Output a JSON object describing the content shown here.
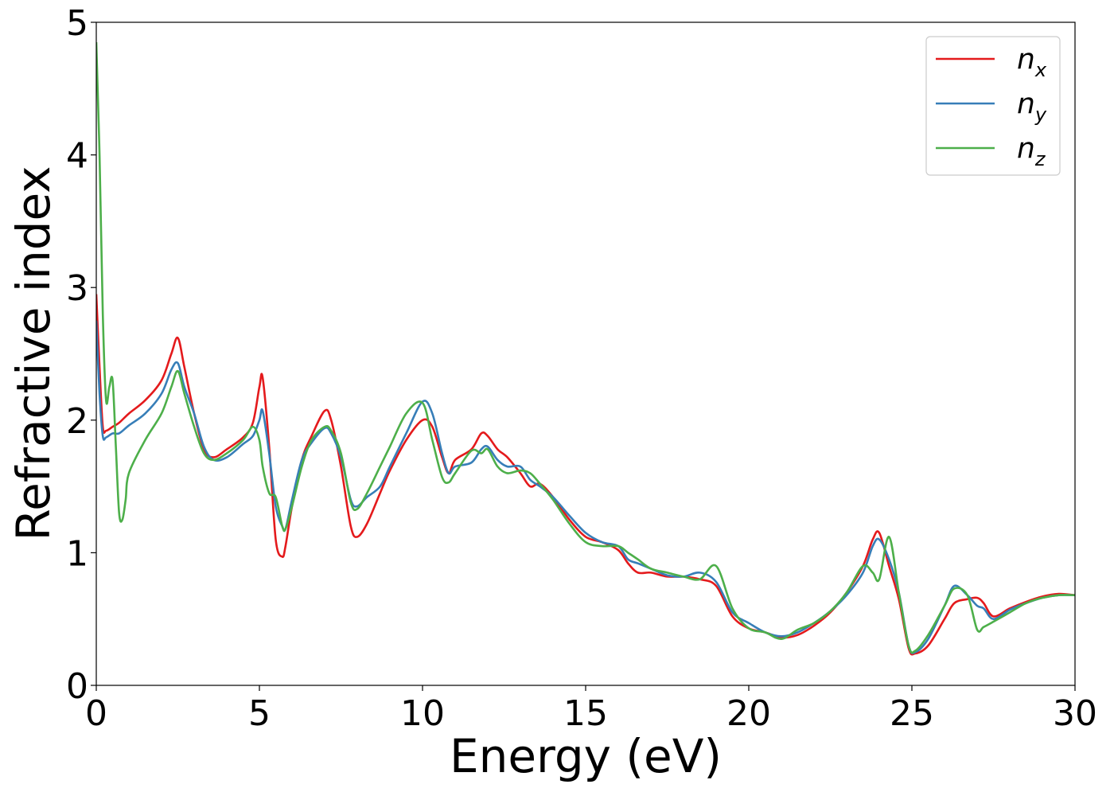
{
  "chart_data": {
    "type": "line",
    "title": "",
    "xlabel": "Energy (eV)",
    "ylabel": "Refractive index",
    "xlim": [
      0,
      30
    ],
    "ylim": [
      0,
      5
    ],
    "xticks": [
      "0",
      "5",
      "10",
      "15",
      "20",
      "25",
      "30"
    ],
    "yticks": [
      "0",
      "1",
      "2",
      "3",
      "4",
      "5"
    ],
    "grid": false,
    "legend_position": "top-right",
    "series": [
      {
        "name": "n",
        "subscript": "x",
        "color": "#e41a1c",
        "x": [
          0,
          0.1,
          0.2,
          0.3,
          0.5,
          0.7,
          1.0,
          1.5,
          2.0,
          2.3,
          2.5,
          2.7,
          3.0,
          3.3,
          3.6,
          4.0,
          4.5,
          4.8,
          5.0,
          5.1,
          5.3,
          5.5,
          5.7,
          5.8,
          6.0,
          6.3,
          6.6,
          7.0,
          7.2,
          7.5,
          7.8,
          8.0,
          8.3,
          8.7,
          9.0,
          9.5,
          10.0,
          10.3,
          10.6,
          10.8,
          11.0,
          11.5,
          11.8,
          12.0,
          12.3,
          12.6,
          13.0,
          13.3,
          13.6,
          14.0,
          14.5,
          15.0,
          15.5,
          16.0,
          16.3,
          16.6,
          17.0,
          17.5,
          18.0,
          18.5,
          19.0,
          19.5,
          20.0,
          20.5,
          21.0,
          21.5,
          22.0,
          22.5,
          23.0,
          23.5,
          23.8,
          24.0,
          24.3,
          24.6,
          24.9,
          25.1,
          25.5,
          26.0,
          26.3,
          26.7,
          27.0,
          27.2,
          27.5,
          28.0,
          28.5,
          29.0,
          29.5,
          30.0
        ],
        "y": [
          2.95,
          2.4,
          1.95,
          1.92,
          1.95,
          1.98,
          2.05,
          2.15,
          2.3,
          2.5,
          2.62,
          2.4,
          2.05,
          1.78,
          1.72,
          1.78,
          1.87,
          1.98,
          2.25,
          2.32,
          1.8,
          1.1,
          0.97,
          1.05,
          1.35,
          1.7,
          1.88,
          2.07,
          2.0,
          1.65,
          1.2,
          1.12,
          1.22,
          1.45,
          1.62,
          1.85,
          2.0,
          1.95,
          1.72,
          1.6,
          1.7,
          1.78,
          1.9,
          1.88,
          1.78,
          1.72,
          1.6,
          1.5,
          1.52,
          1.42,
          1.25,
          1.12,
          1.08,
          1.02,
          0.92,
          0.85,
          0.85,
          0.82,
          0.82,
          0.8,
          0.75,
          0.52,
          0.43,
          0.4,
          0.36,
          0.38,
          0.45,
          0.55,
          0.7,
          0.9,
          1.1,
          1.15,
          0.9,
          0.65,
          0.28,
          0.24,
          0.3,
          0.5,
          0.62,
          0.65,
          0.66,
          0.62,
          0.52,
          0.58,
          0.63,
          0.67,
          0.69,
          0.68
        ]
      },
      {
        "name": "n",
        "subscript": "y",
        "color": "#377eb8",
        "x": [
          0,
          0.1,
          0.2,
          0.3,
          0.5,
          0.7,
          1.0,
          1.5,
          2.0,
          2.3,
          2.5,
          2.7,
          3.0,
          3.3,
          3.6,
          4.0,
          4.5,
          4.8,
          5.0,
          5.1,
          5.3,
          5.5,
          5.7,
          5.8,
          6.0,
          6.3,
          6.6,
          7.0,
          7.2,
          7.5,
          7.8,
          8.0,
          8.3,
          8.7,
          9.0,
          9.5,
          10.0,
          10.3,
          10.6,
          10.8,
          11.0,
          11.5,
          11.8,
          12.0,
          12.3,
          12.6,
          13.0,
          13.3,
          13.6,
          14.0,
          14.5,
          15.0,
          15.5,
          16.0,
          16.3,
          16.6,
          17.0,
          17.5,
          18.0,
          18.5,
          19.0,
          19.5,
          20.0,
          20.5,
          21.0,
          21.5,
          22.0,
          22.5,
          23.0,
          23.5,
          23.8,
          24.0,
          24.3,
          24.6,
          24.9,
          25.1,
          25.5,
          26.0,
          26.3,
          26.7,
          27.0,
          27.2,
          27.5,
          28.0,
          28.5,
          29.0,
          29.5,
          30.0
        ],
        "y": [
          2.75,
          2.2,
          1.88,
          1.87,
          1.9,
          1.9,
          1.96,
          2.05,
          2.2,
          2.38,
          2.43,
          2.25,
          2.05,
          1.8,
          1.7,
          1.72,
          1.82,
          1.88,
          2.0,
          2.07,
          1.75,
          1.35,
          1.2,
          1.18,
          1.4,
          1.7,
          1.83,
          1.94,
          1.9,
          1.72,
          1.4,
          1.35,
          1.42,
          1.5,
          1.65,
          1.9,
          2.14,
          2.05,
          1.75,
          1.6,
          1.65,
          1.68,
          1.78,
          1.8,
          1.7,
          1.65,
          1.65,
          1.55,
          1.5,
          1.42,
          1.28,
          1.15,
          1.08,
          1.05,
          0.95,
          0.92,
          0.88,
          0.83,
          0.82,
          0.85,
          0.78,
          0.55,
          0.47,
          0.4,
          0.37,
          0.4,
          0.47,
          0.56,
          0.68,
          0.85,
          1.05,
          1.1,
          0.95,
          0.7,
          0.3,
          0.25,
          0.35,
          0.6,
          0.75,
          0.68,
          0.6,
          0.58,
          0.5,
          0.57,
          0.62,
          0.66,
          0.68,
          0.68
        ]
      },
      {
        "name": "n",
        "subscript": "z",
        "color": "#4daf4a",
        "x": [
          0,
          0.1,
          0.2,
          0.3,
          0.4,
          0.5,
          0.6,
          0.7,
          0.8,
          0.9,
          1.0,
          1.5,
          2.0,
          2.3,
          2.5,
          2.7,
          3.0,
          3.3,
          3.6,
          4.0,
          4.5,
          4.8,
          5.0,
          5.1,
          5.3,
          5.5,
          5.7,
          5.8,
          6.0,
          6.3,
          6.6,
          7.0,
          7.2,
          7.5,
          7.8,
          8.0,
          8.3,
          8.7,
          9.0,
          9.5,
          10.0,
          10.3,
          10.6,
          10.8,
          11.0,
          11.5,
          11.8,
          12.0,
          12.3,
          12.6,
          13.0,
          13.3,
          13.6,
          14.0,
          14.5,
          15.0,
          15.5,
          16.0,
          16.3,
          16.6,
          17.0,
          17.5,
          18.0,
          18.5,
          19.0,
          19.5,
          20.0,
          20.5,
          21.0,
          21.5,
          22.0,
          22.5,
          23.0,
          23.5,
          23.8,
          24.0,
          24.3,
          24.6,
          24.9,
          25.1,
          25.5,
          26.0,
          26.3,
          26.7,
          27.0,
          27.2,
          27.5,
          28.0,
          28.5,
          29.0,
          29.5,
          30.0
        ],
        "y": [
          4.85,
          4.0,
          2.8,
          2.15,
          2.25,
          2.3,
          1.8,
          1.3,
          1.25,
          1.4,
          1.6,
          1.85,
          2.05,
          2.25,
          2.37,
          2.2,
          1.95,
          1.75,
          1.7,
          1.75,
          1.85,
          1.95,
          1.85,
          1.65,
          1.45,
          1.42,
          1.2,
          1.18,
          1.35,
          1.65,
          1.85,
          1.95,
          1.92,
          1.75,
          1.38,
          1.33,
          1.45,
          1.65,
          1.8,
          2.05,
          2.13,
          1.85,
          1.57,
          1.53,
          1.6,
          1.77,
          1.75,
          1.78,
          1.65,
          1.6,
          1.62,
          1.6,
          1.52,
          1.4,
          1.22,
          1.08,
          1.05,
          1.05,
          1.0,
          0.95,
          0.88,
          0.85,
          0.82,
          0.8,
          0.9,
          0.58,
          0.43,
          0.4,
          0.35,
          0.42,
          0.47,
          0.56,
          0.7,
          0.9,
          0.85,
          0.8,
          1.12,
          0.7,
          0.3,
          0.26,
          0.38,
          0.6,
          0.73,
          0.68,
          0.42,
          0.44,
          0.48,
          0.55,
          0.62,
          0.66,
          0.68,
          0.68
        ]
      }
    ]
  }
}
